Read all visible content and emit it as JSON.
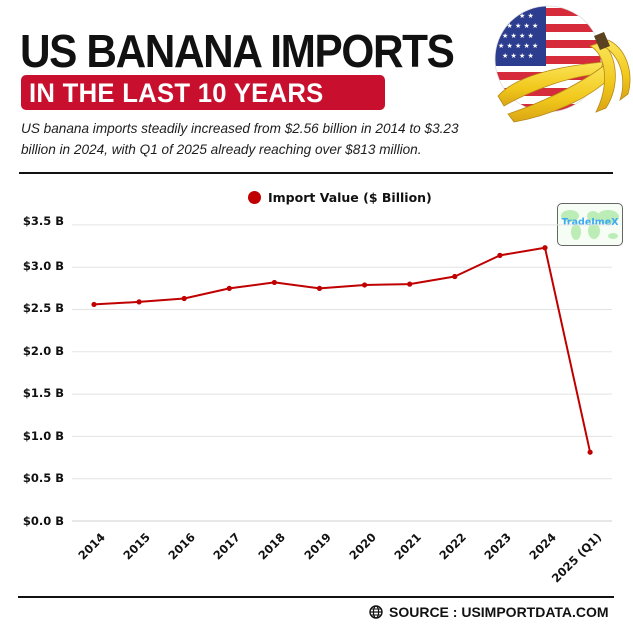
{
  "header": {
    "title": "US BANANA IMPORTS",
    "banner": "IN THE LAST 10 YEARS",
    "subtitle": "US banana imports steadily increased from $2.56 billion in 2014 to $3.23 billion in 2024, with Q1 of 2025 already reaching over $813 million.",
    "hero_image": "us-flag-and-bananas"
  },
  "watermark": {
    "label": "TradeImeX"
  },
  "footer": {
    "source": "SOURCE : USIMPORTDATA.COM",
    "icon": "globe-icon"
  },
  "colors": {
    "accent": "#c8102e",
    "line": "#c00000",
    "grid": "#e3e3e3",
    "badge_text": "#3ea9f5"
  },
  "chart_data": {
    "type": "line",
    "title": "US Banana Imports in the Last 10 Years",
    "xlabel": "",
    "ylabel": "",
    "legend": [
      "Import Value ($ Billion)"
    ],
    "legend_position": "top",
    "grid": true,
    "ylim": [
      0,
      3.5
    ],
    "yticks": [
      "$0.0 B",
      "$0.5 B",
      "$1.0 B",
      "$1.5 B",
      "$2.0 B",
      "$2.5 B",
      "$3.0 B",
      "$3.5 B"
    ],
    "categories": [
      "2014",
      "2015",
      "2016",
      "2017",
      "2018",
      "2019",
      "2020",
      "2021",
      "2022",
      "2023",
      "2024",
      "2025 (Q1)"
    ],
    "series": [
      {
        "name": "Import Value ($ Billion)",
        "values": [
          2.56,
          2.59,
          2.63,
          2.75,
          2.82,
          2.75,
          2.79,
          2.8,
          2.89,
          3.14,
          3.23,
          0.813
        ]
      }
    ]
  }
}
